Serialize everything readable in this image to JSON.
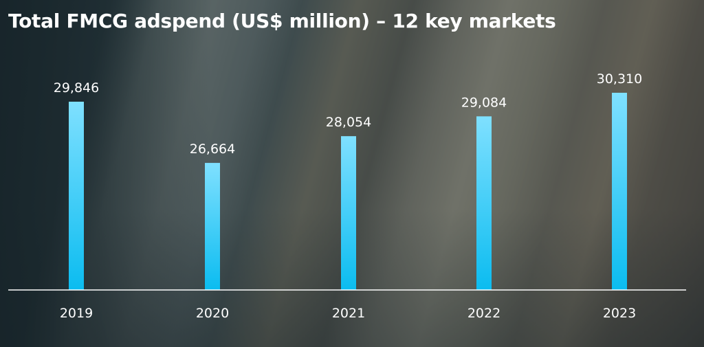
{
  "chart_data": {
    "type": "bar",
    "title": "Total FMCG adspend (US$ million) – 12 key markets",
    "categories": [
      "2019",
      "2020",
      "2021",
      "2022",
      "2023"
    ],
    "values": [
      29846,
      26664,
      28054,
      29084,
      30310
    ],
    "value_labels": [
      "29,846",
      "26,664",
      "28,054",
      "29,084",
      "30,310"
    ],
    "grid": false,
    "legend": "none"
  },
  "colors": {
    "bar_top": "#7fe0ff",
    "bar_bottom": "#0bbcf0",
    "text": "#ffffff",
    "axis": "#ffffff"
  }
}
